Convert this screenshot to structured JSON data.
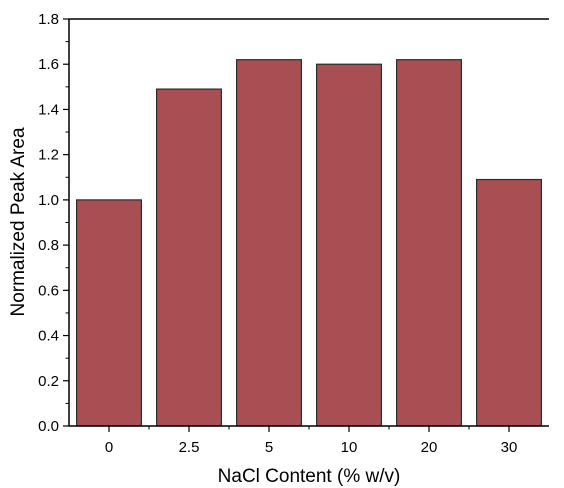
{
  "chart_data": {
    "type": "bar",
    "categories": [
      "0",
      "2.5",
      "5",
      "10",
      "20",
      "30"
    ],
    "values": [
      1.0,
      1.49,
      1.62,
      1.6,
      1.62,
      1.09
    ],
    "xlabel": "NaCl Content (% w/v)",
    "ylabel": "Normalized Peak Area",
    "ylim": [
      0.0,
      1.8
    ],
    "yticks": [
      "0.0",
      "0.2",
      "0.4",
      "0.6",
      "0.8",
      "1.0",
      "1.2",
      "1.4",
      "1.6",
      "1.8"
    ],
    "grid": false,
    "legend": "none",
    "bar_color": "#a94f53",
    "bar_edge_color": "#2b2b2b",
    "axis_color": "#000000"
  }
}
